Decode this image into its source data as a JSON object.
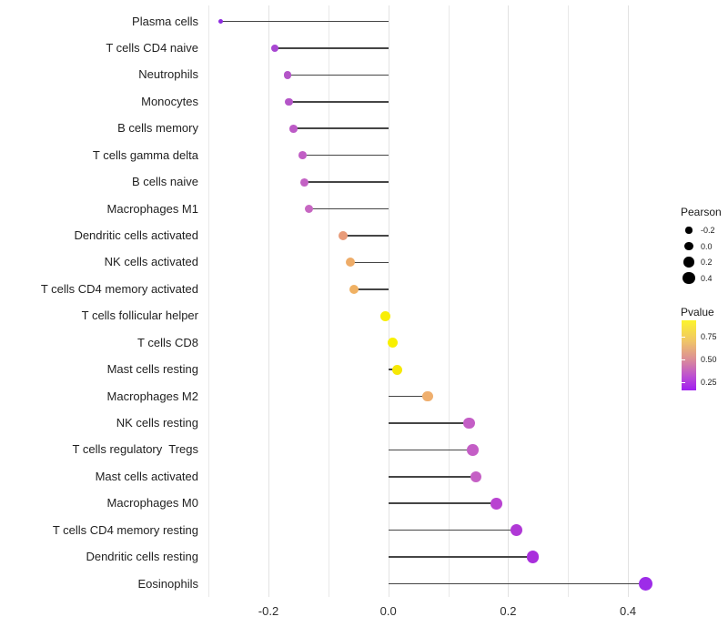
{
  "chart_data": {
    "type": "scatter",
    "subtype": "lollipop",
    "title": "",
    "xlabel": "",
    "ylabel": "",
    "xlim": [
      -0.32,
      0.47
    ],
    "grid": "vertical-only",
    "x_major_ticks": [
      {
        "v": -0.2,
        "label": "-0.2"
      },
      {
        "v": 0.0,
        "label": "0.0"
      },
      {
        "v": 0.2,
        "label": "0.2"
      },
      {
        "v": 0.4,
        "label": "0.4"
      }
    ],
    "x_minor_gridlines": [
      -0.3,
      -0.1,
      0.1,
      0.3
    ],
    "points": [
      {
        "label": "Plasma cells",
        "pearson": -0.28,
        "color": "#8E2BE0"
      },
      {
        "label": "T cells CD4 naive",
        "pearson": -0.19,
        "color": "#A847D2"
      },
      {
        "label": "Neutrophils",
        "pearson": -0.168,
        "color": "#B455C8"
      },
      {
        "label": "Monocytes",
        "pearson": -0.166,
        "color": "#B455C8"
      },
      {
        "label": "B cells memory",
        "pearson": -0.158,
        "color": "#BC5AC6"
      },
      {
        "label": "T cells gamma delta",
        "pearson": -0.143,
        "color": "#C15EC5"
      },
      {
        "label": "B cells naive",
        "pearson": -0.14,
        "color": "#C362C4"
      },
      {
        "label": "Macrophages M1",
        "pearson": -0.132,
        "color": "#C767C2"
      },
      {
        "label": "Dendritic cells activated",
        "pearson": -0.075,
        "color": "#E89B79"
      },
      {
        "label": "NK cells activated",
        "pearson": -0.063,
        "color": "#EEAC68"
      },
      {
        "label": "T cells CD4 memory activated",
        "pearson": -0.057,
        "color": "#F0B163"
      },
      {
        "label": "T cells follicular helper",
        "pearson": -0.005,
        "color": "#F8EE05"
      },
      {
        "label": "T cells CD8",
        "pearson": 0.008,
        "color": "#F8F000"
      },
      {
        "label": "Mast cells resting",
        "pearson": 0.015,
        "color": "#F6E805"
      },
      {
        "label": "Macrophages M2",
        "pearson": 0.066,
        "color": "#EFAF6E"
      },
      {
        "label": "NK cells resting",
        "pearson": 0.135,
        "color": "#C45EC6"
      },
      {
        "label": "T cells regulatory  Tregs",
        "pearson": 0.141,
        "color": "#C45EC6"
      },
      {
        "label": "Mast cells activated",
        "pearson": 0.146,
        "color": "#C560C5"
      },
      {
        "label": "Macrophages M0",
        "pearson": 0.181,
        "color": "#B943D1"
      },
      {
        "label": "T cells CD4 memory resting",
        "pearson": 0.214,
        "color": "#B038D6"
      },
      {
        "label": "Dendritic cells resting",
        "pearson": 0.241,
        "color": "#A92FDC"
      },
      {
        "label": "Eosinophils",
        "pearson": 0.43,
        "color": "#9D2CE8"
      }
    ],
    "legend_size": {
      "title": "Pearson",
      "entries": [
        {
          "label": "-0.2",
          "r": 3.6
        },
        {
          "label": "0.0",
          "r": 4.8
        },
        {
          "label": "0.2",
          "r": 5.8
        },
        {
          "label": "0.4",
          "r": 6.6
        }
      ],
      "dot_color": "#000000"
    },
    "legend_color": {
      "title": "Pvalue",
      "labels": [
        "0.75",
        "0.50",
        "0.25"
      ],
      "gradient_top": "#FCF42C",
      "gradient_mid": "#DC8F96",
      "gradient_bottom": "#A01EF0"
    },
    "stem_color": "#454545"
  }
}
